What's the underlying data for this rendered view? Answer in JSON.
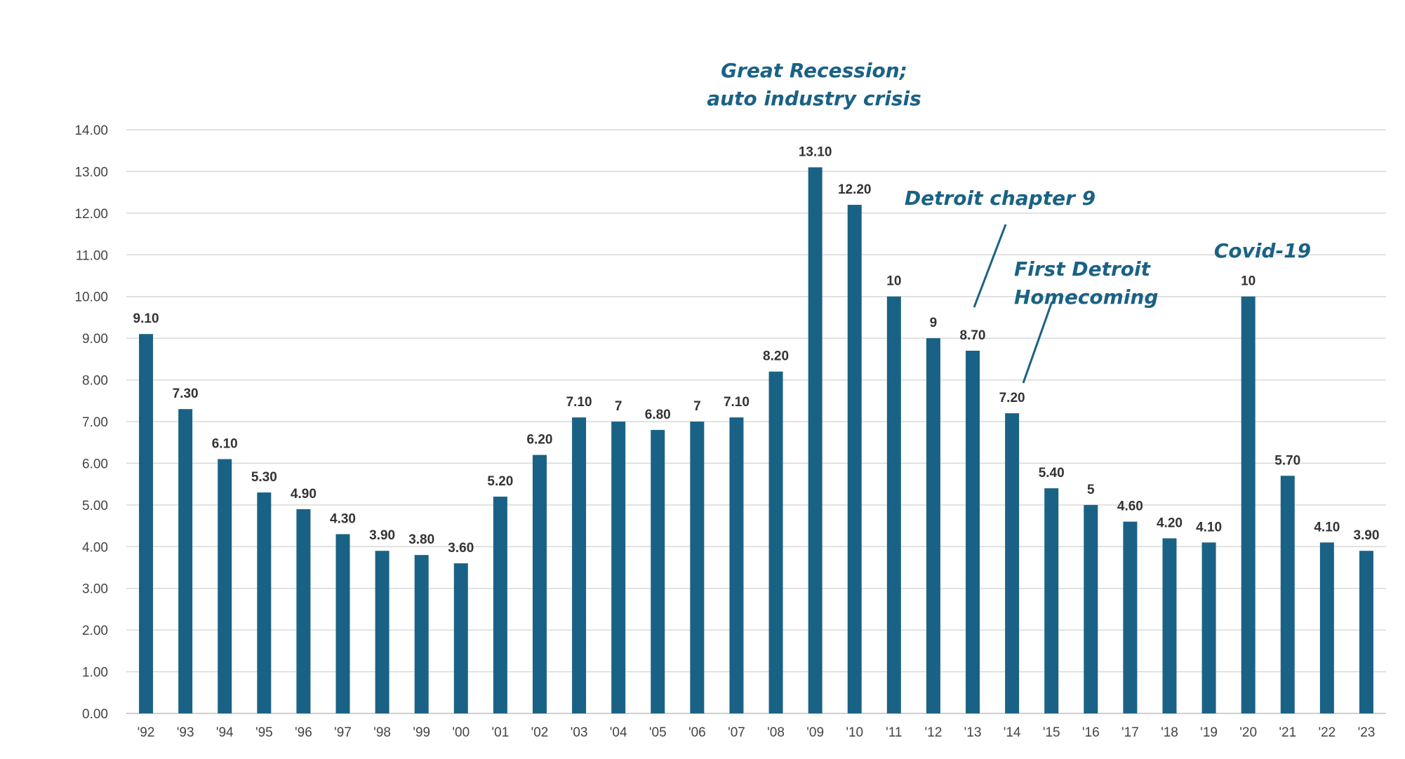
{
  "chart_data": {
    "type": "bar",
    "title": "",
    "xlabel": "",
    "ylabel": "",
    "ylim": [
      0,
      14
    ],
    "yticks": [
      0,
      1,
      2,
      3,
      4,
      5,
      6,
      7,
      8,
      9,
      10,
      11,
      12,
      13,
      14
    ],
    "ytick_labels": [
      "0.00",
      "1.00",
      "2.00",
      "3.00",
      "4.00",
      "5.00",
      "6.00",
      "7.00",
      "8.00",
      "9.00",
      "10.00",
      "11.00",
      "12.00",
      "13.00",
      "14.00"
    ],
    "grid": true,
    "legend": "none",
    "categories": [
      "'92",
      "'93",
      "'94",
      "'95",
      "'96",
      "'97",
      "'98",
      "'99",
      "'00",
      "'01",
      "'02",
      "'03",
      "'04",
      "'05",
      "'06",
      "'07",
      "'08",
      "'09",
      "'10",
      "'11",
      "'12",
      "'13",
      "'14",
      "'15",
      "'16",
      "'17",
      "'18",
      "'19",
      "'20",
      "'21",
      "'22",
      "'23"
    ],
    "values": [
      9.1,
      7.3,
      6.1,
      5.3,
      4.9,
      4.3,
      3.9,
      3.8,
      3.6,
      5.2,
      6.2,
      7.1,
      7,
      6.8,
      7,
      7.1,
      8.2,
      13.1,
      12.2,
      10,
      9,
      8.7,
      7.2,
      5.4,
      5,
      4.6,
      4.2,
      4.1,
      10,
      5.7,
      4.1,
      3.9
    ],
    "data_labels": [
      "9.10",
      "7.30",
      "6.10",
      "5.30",
      "4.90",
      "4.30",
      "3.90",
      "3.80",
      "3.60",
      "5.20",
      "6.20",
      "7.10",
      "7",
      "6.80",
      "7",
      "7.10",
      "8.20",
      "13.10",
      "12.20",
      "10",
      "9",
      "8.70",
      "7.20",
      "5.40",
      "5",
      "4.60",
      "4.20",
      "4.10",
      "10",
      "5.70",
      "4.10",
      "3.90"
    ],
    "annotations": [
      {
        "name": "great-recession",
        "lines": [
          "Great Recession;",
          "auto industry crisis"
        ],
        "anchor_category": "'09"
      },
      {
        "name": "detroit-chapter-9",
        "lines": [
          "Detroit chapter 9"
        ],
        "anchor_category": "'13"
      },
      {
        "name": "first-detroit-homecoming",
        "lines": [
          "First Detroit",
          "Homecoming"
        ],
        "anchor_category": "'14"
      },
      {
        "name": "covid-19",
        "lines": [
          "Covid-19"
        ],
        "anchor_category": "'20"
      }
    ]
  },
  "colors": {
    "bar": "#1a6285",
    "annotation": "#1a6285",
    "gridline": "#d9d9d9"
  }
}
